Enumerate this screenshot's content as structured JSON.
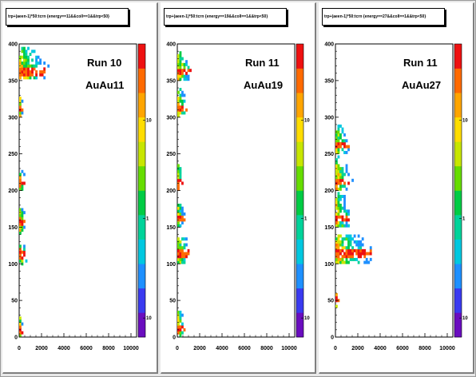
{
  "chart_data": [
    {
      "type": "heatmap",
      "title": "trp+(aeen-1)*50:tcrn {energy==11&&coll==1&&trp<50}",
      "annotation_line1": "Run 10",
      "annotation_line2": "AuAu11",
      "xlim": [
        0,
        10500
      ],
      "ylim": [
        0,
        400
      ],
      "x_ticks": [
        0,
        2000,
        4000,
        6000,
        8000,
        10000
      ],
      "y_ticks": [
        0,
        50,
        100,
        150,
        200,
        250,
        300,
        350,
        400
      ],
      "z_scale": "log",
      "z_ticks": [
        "10",
        "1",
        "10"
      ],
      "bands": [
        {
          "y": [
            352,
            395
          ],
          "x_max": 3200,
          "peak_y": 360
        },
        {
          "y": [
            300,
            330
          ],
          "x_max": 300,
          "peak_y": 310
        },
        {
          "y": [
            200,
            225
          ],
          "x_max": 600,
          "peak_y": 210
        },
        {
          "y": [
            140,
            175
          ],
          "x_max": 600,
          "peak_y": 155
        },
        {
          "y": [
            98,
            125
          ],
          "x_max": 900,
          "peak_y": 110
        },
        {
          "y": [
            0,
            25
          ],
          "x_max": 300,
          "peak_y": 8
        }
      ]
    },
    {
      "type": "heatmap",
      "title": "trp+(aeen-1)*50:tcrn {energy==19&&coll==1&&trp<50}",
      "annotation_line1": "Run 11",
      "annotation_line2": "AuAu19",
      "xlim": [
        0,
        10500
      ],
      "ylim": [
        0,
        400
      ],
      "x_ticks": [
        0,
        2000,
        4000,
        6000,
        8000,
        10000
      ],
      "y_ticks": [
        0,
        50,
        100,
        150,
        200,
        250,
        300,
        350,
        400
      ],
      "z_scale": "log",
      "z_ticks": [
        "10",
        "1",
        "10"
      ],
      "bands": [
        {
          "y": [
            350,
            390
          ],
          "x_max": 1400,
          "peak_y": 360
        },
        {
          "y": [
            300,
            340
          ],
          "x_max": 900,
          "peak_y": 310
        },
        {
          "y": [
            200,
            235
          ],
          "x_max": 600,
          "peak_y": 210
        },
        {
          "y": [
            150,
            180
          ],
          "x_max": 700,
          "peak_y": 160
        },
        {
          "y": [
            100,
            135
          ],
          "x_max": 1400,
          "peak_y": 112
        },
        {
          "y": [
            0,
            35
          ],
          "x_max": 700,
          "peak_y": 10
        }
      ]
    },
    {
      "type": "heatmap",
      "title": "trp+(aeen-1)*50:tcrn {energy==27&&coll==1&&trp<50}",
      "annotation_line1": "Run 11",
      "annotation_line2": "AuAu27",
      "xlim": [
        0,
        10500
      ],
      "ylim": [
        0,
        400
      ],
      "x_ticks": [
        0,
        2000,
        4000,
        6000,
        8000,
        10000
      ],
      "y_ticks": [
        0,
        50,
        100,
        150,
        200,
        250,
        300,
        350,
        400
      ],
      "z_scale": "log",
      "z_ticks": [
        "10",
        "1",
        "10"
      ],
      "bands": [
        {
          "y": [
            250,
            290
          ],
          "x_max": 1300,
          "peak_y": 260
        },
        {
          "y": [
            200,
            245
          ],
          "x_max": 1500,
          "peak_y": 210
        },
        {
          "y": [
            150,
            195
          ],
          "x_max": 1700,
          "peak_y": 160
        },
        {
          "y": [
            100,
            140
          ],
          "x_max": 4100,
          "peak_y": 112
        },
        {
          "y": [
            40,
            60
          ],
          "x_max": 250,
          "peak_y": 50
        }
      ]
    }
  ],
  "palette_colors": [
    "#6a0dbf",
    "#3a3af0",
    "#1e90ff",
    "#00c8e0",
    "#00d39a",
    "#00cc44",
    "#66dd00",
    "#c8e600",
    "#ffdd00",
    "#ffa500",
    "#ff6a00",
    "#ee1111"
  ]
}
